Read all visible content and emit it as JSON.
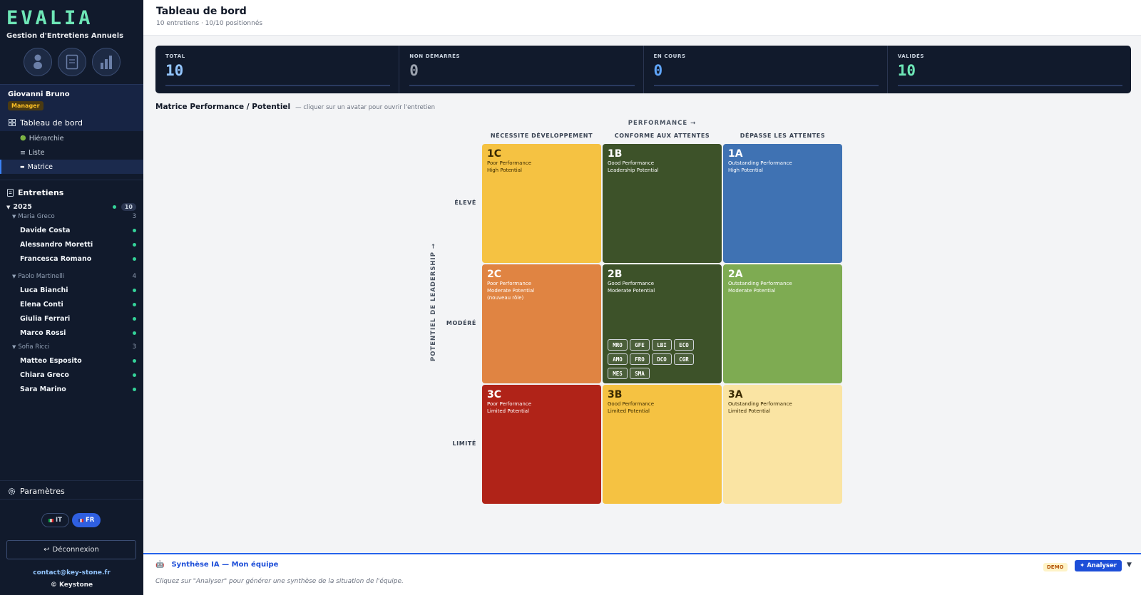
{
  "app": {
    "logo": "EVALIA",
    "subtitle": "Gestion d'Entretiens Annuels"
  },
  "user": {
    "name": "Giovanni Bruno",
    "role": "Manager"
  },
  "nav": {
    "dashboard": "Tableau de bord",
    "sub_items": [
      {
        "icon": "🟢",
        "label": "Hiérarchie"
      },
      {
        "icon": "≡",
        "label": "Liste"
      },
      {
        "icon": "▬",
        "label": "Matrice"
      }
    ],
    "section_title": "Entretiens",
    "settings": "Paramètres"
  },
  "tree": {
    "year": "2025",
    "year_count": "10",
    "groups": [
      {
        "manager": "Maria Greco",
        "count": "3",
        "employees": [
          "Davide Costa",
          "Alessandro Moretti",
          "Francesca Romano"
        ]
      },
      {
        "manager": "Paolo Martinelli",
        "count": "4",
        "employees": [
          "Luca Bianchi",
          "Elena Conti",
          "Giulia Ferrari",
          "Marco Rossi"
        ]
      },
      {
        "manager": "Sofia Ricci",
        "count": "3",
        "employees": [
          "Matteo Esposito",
          "Chiara Greco",
          "Sara Marino"
        ]
      }
    ]
  },
  "languages": {
    "it": "IT",
    "fr": "FR"
  },
  "logout": "Déconnexion",
  "contact": "contact@key-stone.fr",
  "copyright": "© Keystone",
  "header": {
    "title": "Tableau de bord",
    "subtitle": "10 entretiens · 10/10 positionnés"
  },
  "stats": [
    {
      "label": "TOTAL",
      "value": "10",
      "color": "#93c5fd"
    },
    {
      "label": "NON DÉMARRÉS",
      "value": "0",
      "color": "#9ca3af"
    },
    {
      "label": "EN COURS",
      "value": "0",
      "color": "#60a5fa"
    },
    {
      "label": "VALIDÉS",
      "value": "10",
      "color": "#6ee7b7"
    }
  ],
  "matrix": {
    "title": "Matrice Performance / Potentiel",
    "hint": "— cliquer sur un avatar pour ouvrir l'entretien",
    "performance_axis": "PERFORMANCE →",
    "potential_axis": "POTENTIEL DE LEADERSHIP →",
    "columns": [
      "NÉCESSITE DÉVELOPPEMENT",
      "CONFORME AUX ATTENTES",
      "DÉPASSE LES ATTENTES"
    ],
    "rows": [
      "ÉLEVÉ",
      "MODÉRÉ",
      "LIMITÉ"
    ],
    "cells": [
      {
        "code": "1C",
        "lines": [
          "Poor Performance",
          "High Potential"
        ],
        "bg": "#f5c242",
        "fg": "#3a2a00",
        "chips": []
      },
      {
        "code": "1B",
        "lines": [
          "Good Performance",
          "Leadership Potential"
        ],
        "bg": "#3d5229",
        "fg": "#ffffff",
        "chips": []
      },
      {
        "code": "1A",
        "lines": [
          "Outstanding Performance",
          "High Potential"
        ],
        "bg": "#3f72b3",
        "fg": "#ffffff",
        "chips": []
      },
      {
        "code": "2C",
        "lines": [
          "Poor Performance",
          "Moderate Potential",
          "(nouveau rôle)"
        ],
        "bg": "#e08442",
        "fg": "#ffffff",
        "chips": []
      },
      {
        "code": "2B",
        "lines": [
          "Good Performance",
          "Moderate Potential"
        ],
        "bg": "#3d5229",
        "fg": "#ffffff",
        "chips": [
          "MRO",
          "GFE",
          "LBI",
          "ECO",
          "AMO",
          "FRO",
          "DCO",
          "CGR",
          "MES",
          "SMA"
        ]
      },
      {
        "code": "2A",
        "lines": [
          "Outstanding Performance",
          "Moderate Potential"
        ],
        "bg": "#7eab52",
        "fg": "#ffffff",
        "chips": []
      },
      {
        "code": "3C",
        "lines": [
          "Poor Performance",
          "Limited Potential"
        ],
        "bg": "#b02318",
        "fg": "#ffffff",
        "chips": []
      },
      {
        "code": "3B",
        "lines": [
          "Good Performance",
          "Limited Potential"
        ],
        "bg": "#f5c242",
        "fg": "#3a2a00",
        "chips": []
      },
      {
        "code": "3A",
        "lines": [
          "Outstanding Performance",
          "Limited Potential"
        ],
        "bg": "#fae4a3",
        "fg": "#3a2a00",
        "chips": []
      }
    ]
  },
  "ai_panel": {
    "title": "Synthèse IA — Mon équipe",
    "text": "Cliquez sur \"Analyser\" pour générer une synthèse de la situation de l'équipe.",
    "demo_badge": "DEMO",
    "analyse_button": "✦ Analyser",
    "collapse_icon": "▼"
  }
}
